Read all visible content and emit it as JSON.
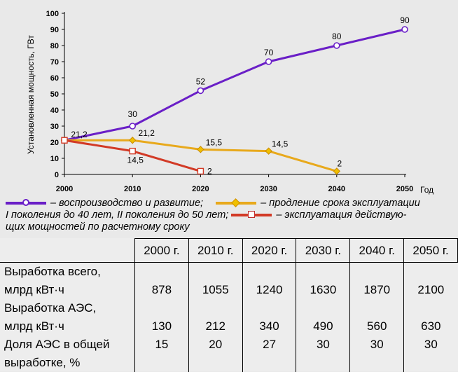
{
  "chart_data": {
    "type": "line",
    "ylabel": "Установленная мощность, ГВт",
    "xlabel": "Год",
    "x": [
      2000,
      2010,
      2020,
      2030,
      2040,
      2050
    ],
    "x_ticks": [
      "2000",
      "2010",
      "2020",
      "2030",
      "2040",
      "2050"
    ],
    "y_ticks": [
      "0",
      "10",
      "20",
      "30",
      "40",
      "50",
      "60",
      "70",
      "80",
      "90",
      "100"
    ],
    "ylim": [
      0,
      100
    ],
    "series": [
      {
        "name": "– воспроизводство и развитие;",
        "color": "#6a1fc7",
        "marker": "circle",
        "x": [
          2000,
          2010,
          2020,
          2030,
          2040,
          2050
        ],
        "values": [
          21.2,
          30,
          52,
          70,
          80,
          90
        ],
        "labels": [
          "",
          "30",
          "52",
          "70",
          "80",
          "90"
        ]
      },
      {
        "name": "– продление срока эксплуатации I поколения до 40 лет, II поколения до 50 лет;",
        "color": "#e8a91c",
        "marker": "diamond",
        "x": [
          2000,
          2010,
          2020,
          2030,
          2040
        ],
        "values": [
          21.2,
          21.2,
          15.5,
          14.5,
          2
        ],
        "labels": [
          "21,2",
          "21,2",
          "15,5",
          "14,5",
          "2"
        ]
      },
      {
        "name": "– эксплуатация действующих мощностей по расчетному сроку",
        "color": "#d23a26",
        "marker": "square",
        "x": [
          2000,
          2010,
          2020
        ],
        "values": [
          21.2,
          14.5,
          2
        ],
        "labels": [
          "",
          "14,5",
          "2"
        ]
      }
    ]
  },
  "legend": {
    "line1_a": "– воспроизводство и развитие;",
    "line1_b": "– продление срока эксплуатации",
    "line2_a": "I поколения до 40 лет, II поколения до 50 лет;",
    "line2_b": "– эксплуатация действую-",
    "line3": "щих мощностей по расчетному сроку"
  },
  "table": {
    "headers": [
      "2000 г.",
      "2010 г.",
      "2020 г.",
      "2030 г.",
      "2040 г.",
      "2050 г."
    ],
    "rows": [
      {
        "label1": "Выработка всего,",
        "label2": "млрд кВт·ч",
        "values": [
          "878",
          "1055",
          "1240",
          "1630",
          "1870",
          "2100"
        ]
      },
      {
        "label1": "Выработка АЭС,",
        "label2": "млрд кВт·ч",
        "values": [
          "130",
          "212",
          "340",
          "490",
          "560",
          "630"
        ]
      },
      {
        "label1": "Доля АЭС в общей",
        "label2": "выработке, %",
        "values": [
          "15",
          "20",
          "27",
          "30",
          "30",
          "30"
        ]
      }
    ]
  }
}
